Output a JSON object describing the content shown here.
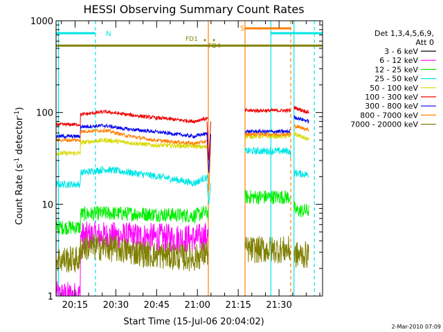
{
  "chart_data": {
    "type": "line",
    "title": "HESSI Observing Summary Count Rates",
    "xlabel": "Start Time (15-Jul-06 20:04:02)",
    "ylabel_main": "Count Rate (s",
    "ylabel_sup1": "-1",
    "ylabel_mid": " detector",
    "ylabel_sup2": "-1",
    "ylabel_end": ")",
    "ylog": true,
    "xlim_min": [
      4.03,
      102
    ],
    "ylim": [
      1,
      1000
    ],
    "xticks": [
      {
        "t": 11,
        "label": "20:15"
      },
      {
        "t": 26,
        "label": "20:30"
      },
      {
        "t": 41,
        "label": "20:45"
      },
      {
        "t": 56,
        "label": "21:00"
      },
      {
        "t": 71,
        "label": "21:15"
      },
      {
        "t": 86,
        "label": "21:30"
      }
    ],
    "yticks": [
      {
        "v": 1,
        "label": "1"
      },
      {
        "v": 10,
        "label": "10"
      },
      {
        "v": 100,
        "label": "100"
      },
      {
        "v": 1000,
        "label": "1000"
      }
    ],
    "legend": {
      "placement": "right",
      "header1": "Det 1,3,4,5,6,9,",
      "header2": "Att 0"
    },
    "series": [
      {
        "name": "3 - 6 keV",
        "color": "#000000",
        "values": []
      },
      {
        "name": "6 - 12 keV",
        "color": "#ff00ff",
        "values": [
          [
            4.03,
            1
          ],
          [
            13,
            1
          ],
          [
            13,
            4.5
          ],
          [
            22,
            4.5
          ],
          [
            45,
            4.3
          ],
          [
            55,
            4.2
          ],
          [
            61,
            4.6
          ],
          [
            73,
            5.0
          ]
        ]
      },
      {
        "name": "12 - 25 keV",
        "color": "#00ee00",
        "values": [
          [
            4.03,
            5.6
          ],
          [
            13,
            5.6
          ],
          [
            13,
            7.8
          ],
          [
            22,
            8.0
          ],
          [
            40,
            7.8
          ],
          [
            55,
            7.5
          ],
          [
            58,
            8.0
          ],
          [
            65,
            8.5
          ],
          [
            72,
            10
          ],
          [
            73,
            12
          ],
          [
            90,
            12
          ],
          [
            92,
            8.5
          ],
          [
            97,
            8.5
          ]
        ]
      },
      {
        "name": "25 - 50 keV",
        "color": "#00e5e5",
        "values": [
          [
            4.03,
            16.5
          ],
          [
            13,
            16.5
          ],
          [
            13,
            22
          ],
          [
            22,
            24
          ],
          [
            32,
            22
          ],
          [
            42,
            20
          ],
          [
            55,
            17
          ],
          [
            58,
            19
          ],
          [
            63,
            20
          ],
          [
            68,
            24
          ],
          [
            73,
            38
          ],
          [
            90,
            38
          ],
          [
            91,
            22
          ],
          [
            97,
            21
          ]
        ]
      },
      {
        "name": "50 - 100 keV",
        "color": "#d8d800",
        "values": [
          [
            4.03,
            36
          ],
          [
            13,
            36
          ],
          [
            13,
            47
          ],
          [
            22,
            50
          ],
          [
            40,
            44
          ],
          [
            55,
            43
          ],
          [
            58,
            42
          ],
          [
            65,
            43
          ],
          [
            70,
            45
          ],
          [
            73,
            55
          ],
          [
            90,
            55
          ],
          [
            91,
            60
          ],
          [
            97,
            50
          ]
        ]
      },
      {
        "name": "100 - 300 keV",
        "color": "#ee0000",
        "values": [
          [
            4.03,
            74
          ],
          [
            13,
            74
          ],
          [
            13,
            95
          ],
          [
            22,
            102
          ],
          [
            30,
            95
          ],
          [
            40,
            88
          ],
          [
            55,
            80
          ],
          [
            58,
            85
          ],
          [
            65,
            88
          ],
          [
            70,
            95
          ],
          [
            73,
            105
          ],
          [
            90,
            105
          ],
          [
            91,
            115
          ],
          [
            97,
            100
          ]
        ]
      },
      {
        "name": "300 - 800 keV",
        "color": "#0000ee",
        "values": [
          [
            4.03,
            55
          ],
          [
            13,
            55
          ],
          [
            13,
            70
          ],
          [
            22,
            72
          ],
          [
            30,
            66
          ],
          [
            40,
            62
          ],
          [
            55,
            55
          ],
          [
            58,
            58
          ],
          [
            65,
            60
          ],
          [
            73,
            62
          ],
          [
            90,
            62
          ],
          [
            91,
            90
          ],
          [
            97,
            80
          ]
        ]
      },
      {
        "name": "800 - 7000 keV",
        "color": "#ff7f00",
        "values": [
          [
            4.03,
            50
          ],
          [
            13,
            50
          ],
          [
            13,
            62
          ],
          [
            22,
            64
          ],
          [
            30,
            56
          ],
          [
            40,
            50
          ],
          [
            55,
            46
          ],
          [
            58,
            48
          ],
          [
            65,
            50
          ],
          [
            70,
            52
          ],
          [
            73,
            58
          ],
          [
            90,
            58
          ],
          [
            91,
            72
          ],
          [
            97,
            65
          ]
        ]
      },
      {
        "name": "7000 - 20000 keV",
        "color": "#7f7f00",
        "values": [
          [
            4.03,
            2.5
          ],
          [
            13,
            2.5
          ],
          [
            13,
            3.4
          ],
          [
            22,
            3.4
          ],
          [
            40,
            2.8
          ],
          [
            55,
            2.6
          ],
          [
            60,
            3.0
          ],
          [
            73,
            3.2
          ],
          [
            90,
            3.2
          ],
          [
            92,
            2.8
          ],
          [
            97,
            2.8
          ]
        ]
      }
    ],
    "annotations": {
      "att_state_text": "N",
      "saa_text": "S",
      "fd1_text": "FD1",
      "fd4_text": "FD4"
    },
    "timestamp": "2-Mar-2010 07:09"
  }
}
